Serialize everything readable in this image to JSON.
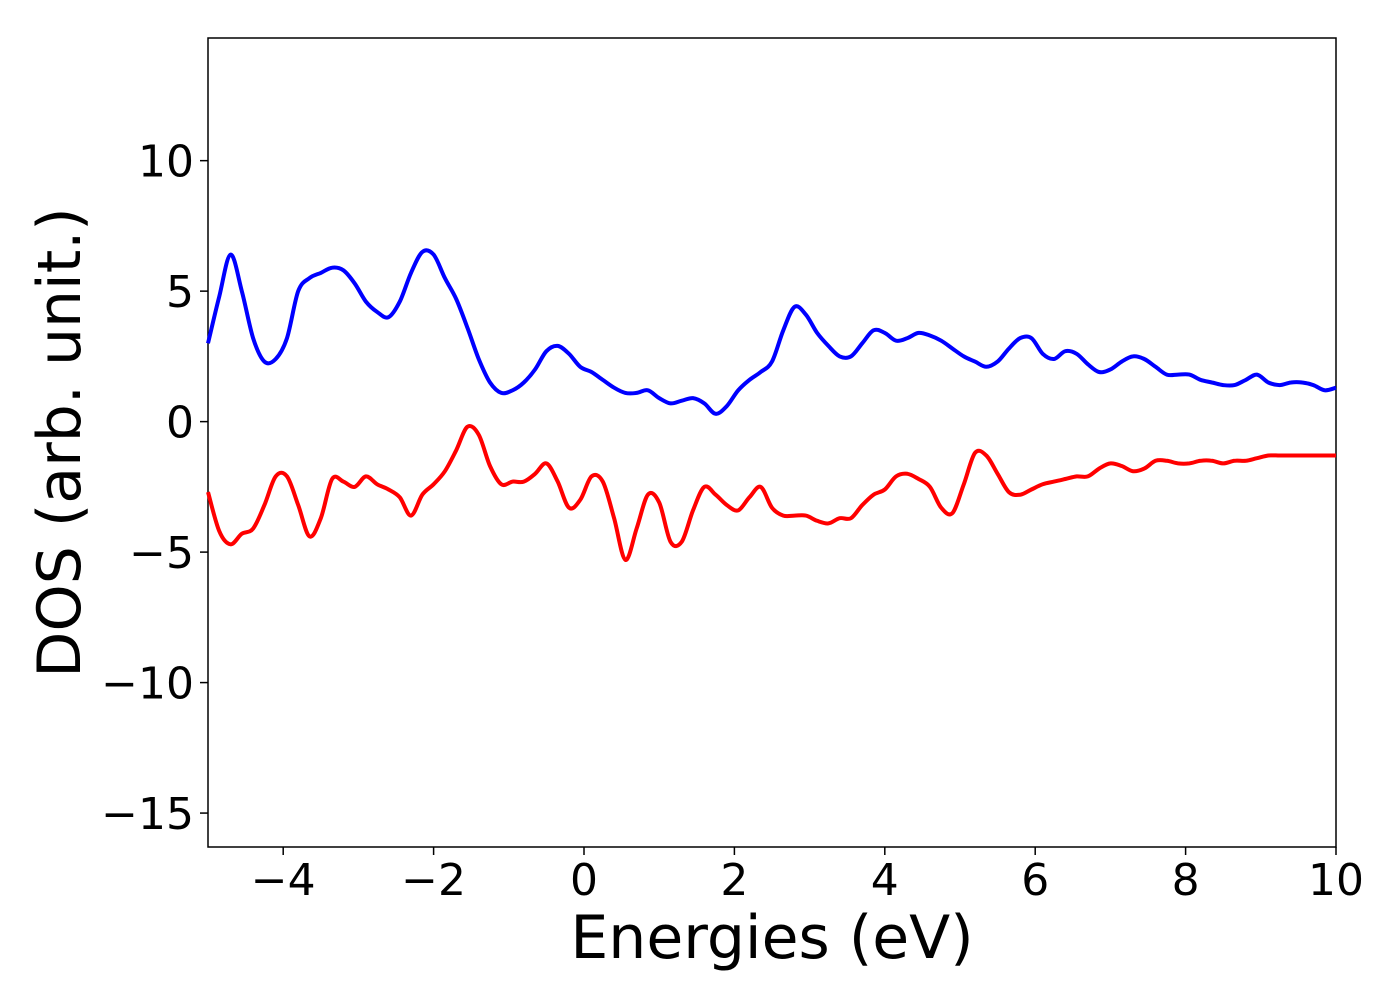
{
  "chart_data": {
    "type": "line",
    "title": "",
    "xlabel": "Energies (eV)",
    "ylabel": "DOS (arb. unit.)",
    "xlim": [
      -5,
      10
    ],
    "ylim": [
      -16.3,
      14.7
    ],
    "xticks": [
      -4,
      -2,
      0,
      2,
      4,
      6,
      8,
      10
    ],
    "yticks": [
      -15,
      -10,
      -5,
      0,
      5,
      10
    ],
    "xtick_labels": [
      "−4",
      "−2",
      "0",
      "2",
      "4",
      "6",
      "8",
      "10"
    ],
    "ytick_labels": [
      "−15",
      "−10",
      "−5",
      "0",
      "5",
      "10"
    ],
    "grid": false,
    "legend": "none",
    "series": [
      {
        "color": "#0000ff",
        "x": [
          -5.0,
          -4.85,
          -4.7,
          -4.55,
          -4.4,
          -4.25,
          -4.1,
          -3.95,
          -3.8,
          -3.65,
          -3.5,
          -3.35,
          -3.2,
          -3.05,
          -2.9,
          -2.75,
          -2.6,
          -2.45,
          -2.3,
          -2.15,
          -2.0,
          -1.85,
          -1.7,
          -1.55,
          -1.4,
          -1.25,
          -1.1,
          -0.95,
          -0.8,
          -0.65,
          -0.5,
          -0.35,
          -0.2,
          -0.05,
          0.1,
          0.25,
          0.4,
          0.55,
          0.7,
          0.85,
          1.0,
          1.15,
          1.3,
          1.45,
          1.6,
          1.75,
          1.9,
          2.05,
          2.2,
          2.35,
          2.5,
          2.65,
          2.8,
          2.95,
          3.1,
          3.25,
          3.4,
          3.55,
          3.7,
          3.85,
          4.0,
          4.15,
          4.3,
          4.45,
          4.6,
          4.75,
          4.9,
          5.05,
          5.2,
          5.35,
          5.5,
          5.65,
          5.8,
          5.95,
          6.1,
          6.25,
          6.4,
          6.55,
          6.7,
          6.85,
          7.0,
          7.15,
          7.3,
          7.45,
          7.6,
          7.75,
          7.9,
          8.05,
          8.2,
          8.35,
          8.5,
          8.65,
          8.8,
          8.95,
          9.1,
          9.25,
          9.4,
          9.55,
          9.7,
          9.85,
          10.0
        ],
        "y": [
          3.0,
          4.8,
          6.4,
          5.0,
          3.2,
          2.3,
          2.4,
          3.2,
          5.0,
          5.5,
          5.7,
          5.9,
          5.8,
          5.3,
          4.6,
          4.2,
          4.0,
          4.6,
          5.7,
          6.5,
          6.4,
          5.5,
          4.7,
          3.6,
          2.4,
          1.5,
          1.1,
          1.2,
          1.5,
          2.0,
          2.7,
          2.9,
          2.6,
          2.1,
          1.9,
          1.6,
          1.3,
          1.1,
          1.1,
          1.2,
          0.9,
          0.7,
          0.8,
          0.9,
          0.7,
          0.3,
          0.6,
          1.2,
          1.6,
          1.9,
          2.3,
          3.5,
          4.4,
          4.1,
          3.4,
          2.9,
          2.5,
          2.5,
          3.0,
          3.5,
          3.4,
          3.1,
          3.2,
          3.4,
          3.3,
          3.1,
          2.8,
          2.5,
          2.3,
          2.1,
          2.3,
          2.8,
          3.2,
          3.2,
          2.6,
          2.4,
          2.7,
          2.6,
          2.2,
          1.9,
          2.0,
          2.3,
          2.5,
          2.4,
          2.1,
          1.8,
          1.8,
          1.8,
          1.6,
          1.5,
          1.4,
          1.4,
          1.6,
          1.8,
          1.5,
          1.4,
          1.5,
          1.5,
          1.4,
          1.2,
          1.3
        ]
      },
      {
        "color": "#ff0000",
        "x": [
          -5.0,
          -4.85,
          -4.7,
          -4.55,
          -4.4,
          -4.25,
          -4.1,
          -3.95,
          -3.8,
          -3.65,
          -3.5,
          -3.35,
          -3.2,
          -3.05,
          -2.9,
          -2.75,
          -2.6,
          -2.45,
          -2.3,
          -2.15,
          -2.0,
          -1.85,
          -1.7,
          -1.55,
          -1.4,
          -1.25,
          -1.1,
          -0.95,
          -0.8,
          -0.65,
          -0.5,
          -0.35,
          -0.2,
          -0.05,
          0.1,
          0.25,
          0.4,
          0.55,
          0.7,
          0.85,
          1.0,
          1.15,
          1.3,
          1.45,
          1.6,
          1.75,
          1.9,
          2.05,
          2.2,
          2.35,
          2.5,
          2.65,
          2.8,
          2.95,
          3.1,
          3.25,
          3.4,
          3.55,
          3.7,
          3.85,
          4.0,
          4.15,
          4.3,
          4.45,
          4.6,
          4.75,
          4.9,
          5.05,
          5.2,
          5.35,
          5.5,
          5.65,
          5.8,
          5.95,
          6.1,
          6.25,
          6.4,
          6.55,
          6.7,
          6.85,
          7.0,
          7.15,
          7.3,
          7.45,
          7.6,
          7.75,
          7.9,
          8.05,
          8.2,
          8.35,
          8.5,
          8.65,
          8.8,
          8.95,
          9.1,
          9.25,
          9.4,
          9.55,
          9.7,
          9.85,
          10.0
        ],
        "y": [
          -2.7,
          -4.2,
          -4.7,
          -4.3,
          -4.1,
          -3.2,
          -2.1,
          -2.1,
          -3.2,
          -4.4,
          -3.7,
          -2.2,
          -2.3,
          -2.5,
          -2.1,
          -2.4,
          -2.6,
          -2.9,
          -3.6,
          -2.8,
          -2.4,
          -1.9,
          -1.1,
          -0.2,
          -0.5,
          -1.7,
          -2.4,
          -2.3,
          -2.3,
          -2.0,
          -1.6,
          -2.3,
          -3.3,
          -3.0,
          -2.1,
          -2.3,
          -3.7,
          -5.3,
          -4.1,
          -2.8,
          -3.1,
          -4.6,
          -4.6,
          -3.4,
          -2.5,
          -2.8,
          -3.2,
          -3.4,
          -2.9,
          -2.5,
          -3.3,
          -3.6,
          -3.6,
          -3.6,
          -3.8,
          -3.9,
          -3.7,
          -3.7,
          -3.2,
          -2.8,
          -2.6,
          -2.1,
          -2.0,
          -2.2,
          -2.5,
          -3.3,
          -3.5,
          -2.4,
          -1.2,
          -1.3,
          -2.0,
          -2.7,
          -2.8,
          -2.6,
          -2.4,
          -2.3,
          -2.2,
          -2.1,
          -2.1,
          -1.8,
          -1.6,
          -1.7,
          -1.9,
          -1.8,
          -1.5,
          -1.5,
          -1.6,
          -1.6,
          -1.5,
          -1.5,
          -1.6,
          -1.5,
          -1.5,
          -1.4,
          -1.3,
          -1.3,
          -1.3,
          -1.3,
          -1.3,
          -1.3,
          -1.3
        ]
      }
    ]
  }
}
